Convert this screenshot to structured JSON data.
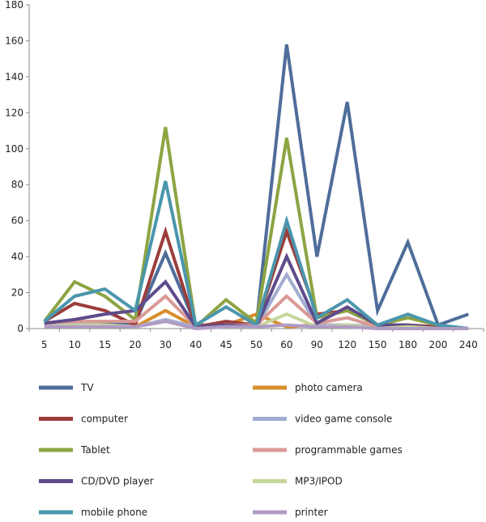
{
  "chart_data": {
    "type": "line",
    "categories": [
      "5",
      "10",
      "15",
      "20",
      "30",
      "40",
      "45",
      "50",
      "60",
      "90",
      "120",
      "150",
      "180",
      "200",
      "240"
    ],
    "ylim": [
      0,
      180
    ],
    "yticks": [
      0,
      20,
      40,
      60,
      80,
      100,
      120,
      140,
      160,
      180
    ],
    "grid": false,
    "legend_position": "bottom",
    "series": [
      {
        "name": "TV",
        "color": "#4f6d9a",
        "values": [
          2,
          3,
          3,
          3,
          42,
          2,
          2,
          2,
          158,
          40,
          126,
          10,
          48,
          2,
          8
        ]
      },
      {
        "name": "photo camera",
        "color": "#d98e2c",
        "values": [
          1,
          3,
          2,
          1,
          10,
          1,
          2,
          8,
          1,
          2,
          2,
          1,
          1,
          0,
          0
        ]
      },
      {
        "name": "computer",
        "color": "#9b3d3b",
        "values": [
          4,
          14,
          10,
          2,
          54,
          1,
          4,
          2,
          54,
          8,
          10,
          2,
          2,
          1,
          0
        ]
      },
      {
        "name": "video game console",
        "color": "#a2acd0",
        "values": [
          2,
          3,
          2,
          1,
          5,
          1,
          1,
          1,
          30,
          2,
          2,
          1,
          1,
          0,
          0
        ]
      },
      {
        "name": "Tablet",
        "color": "#8da443",
        "values": [
          4,
          26,
          18,
          5,
          112,
          1,
          16,
          3,
          106,
          6,
          10,
          2,
          6,
          2,
          0
        ]
      },
      {
        "name": "programmable games",
        "color": "#d99a96",
        "values": [
          3,
          4,
          4,
          4,
          18,
          1,
          2,
          2,
          18,
          3,
          6,
          1,
          2,
          0,
          0
        ]
      },
      {
        "name": "CD/DVD player",
        "color": "#5e4b8b",
        "values": [
          3,
          5,
          8,
          10,
          26,
          1,
          2,
          1,
          40,
          3,
          12,
          2,
          2,
          0,
          0
        ]
      },
      {
        "name": "MP3/IPOD",
        "color": "#c6d69a",
        "values": [
          1,
          2,
          2,
          1,
          4,
          0,
          1,
          1,
          8,
          1,
          2,
          0,
          1,
          0,
          0
        ]
      },
      {
        "name": "mobile phone",
        "color": "#4a96ad",
        "values": [
          4,
          18,
          22,
          10,
          82,
          2,
          12,
          2,
          60,
          6,
          16,
          2,
          8,
          2,
          0
        ]
      },
      {
        "name": "printer",
        "color": "#b09bc5",
        "values": [
          1,
          1,
          1,
          1,
          4,
          0,
          1,
          1,
          2,
          1,
          1,
          0,
          0,
          0,
          0
        ]
      }
    ]
  }
}
